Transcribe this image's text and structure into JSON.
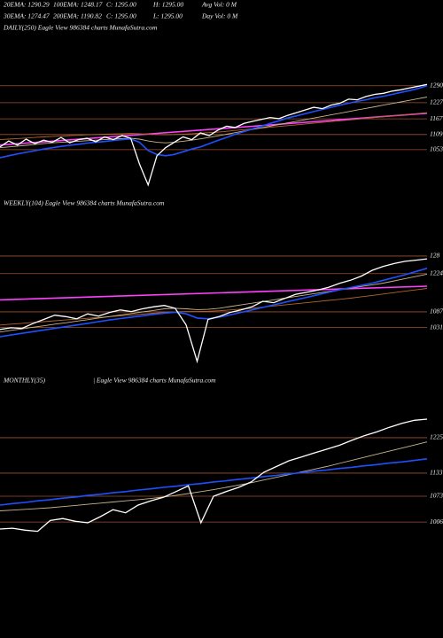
{
  "header": {
    "rows": [
      [
        "20EMA: 1290.29",
        "100EMA: 1248.17",
        "C: 1295.00",
        "H: 1295.00",
        "Avg Vol: 0  M"
      ],
      [
        "30EMA: 1274.47",
        "200EMA: 1190.82",
        "C: 1295.00",
        "L: 1295.00",
        "Day Vol: 0  M"
      ]
    ]
  },
  "chart_data": [
    {
      "type": "line",
      "title": "DAILY(250) Eagle  View  986384  charts MunafaSutra.com",
      "ylim": [
        898,
        1345
      ],
      "yticks": [
        1290,
        1227,
        1167,
        1109,
        1053
      ],
      "grid": true,
      "grid_color": "#a0522d",
      "trend": {
        "color": "#ff40ff",
        "values": [
          1070,
          1188
        ]
      },
      "series": [
        {
          "color": "#b4642a",
          "values": [
            1090,
            1092,
            1094,
            1096,
            1098,
            1100,
            1102,
            1103,
            1105,
            1106,
            1108,
            1109,
            1110,
            1111,
            1112,
            1113,
            1112,
            1110,
            1109,
            1108,
            1109,
            1110,
            1112,
            1114,
            1116,
            1118,
            1121,
            1124,
            1127,
            1130,
            1133,
            1136,
            1139,
            1142,
            1145,
            1148,
            1151,
            1154,
            1157,
            1160,
            1163,
            1166,
            1169,
            1172,
            1175,
            1178,
            1181,
            1184,
            1187,
            1190
          ]
        },
        {
          "color": "#c8b48c",
          "values": [
            1060,
            1063,
            1066,
            1069,
            1072,
            1075,
            1078,
            1080,
            1082,
            1084,
            1086,
            1088,
            1090,
            1092,
            1094,
            1095,
            1092,
            1085,
            1080,
            1078,
            1080,
            1084,
            1088,
            1093,
            1098,
            1104,
            1110,
            1116,
            1122,
            1128,
            1134,
            1140,
            1146,
            1152,
            1158,
            1164,
            1170,
            1176,
            1182,
            1188,
            1194,
            1200,
            1206,
            1212,
            1218,
            1224,
            1230,
            1236,
            1242,
            1248
          ]
        },
        {
          "color": "#1e50ff",
          "values": [
            1023,
            1030,
            1037,
            1043,
            1049,
            1055,
            1060,
            1065,
            1069,
            1073,
            1077,
            1080,
            1083,
            1087,
            1090,
            1093,
            1080,
            1050,
            1035,
            1030,
            1035,
            1045,
            1055,
            1063,
            1075,
            1087,
            1098,
            1110,
            1120,
            1130,
            1140,
            1150,
            1160,
            1170,
            1178,
            1186,
            1194,
            1202,
            1210,
            1218,
            1225,
            1232,
            1238,
            1245,
            1251,
            1258,
            1265,
            1272,
            1280,
            1290
          ]
        },
        {
          "color": "#ffffff",
          "values": [
            1063,
            1085,
            1070,
            1092,
            1075,
            1088,
            1080,
            1098,
            1078,
            1090,
            1095,
            1082,
            1100,
            1090,
            1105,
            1095,
            1000,
            922,
            1030,
            1060,
            1080,
            1100,
            1090,
            1115,
            1105,
            1125,
            1140,
            1135,
            1150,
            1158,
            1165,
            1172,
            1168,
            1180,
            1190,
            1200,
            1210,
            1205,
            1218,
            1225,
            1240,
            1238,
            1250,
            1258,
            1262,
            1270,
            1275,
            1282,
            1288,
            1295
          ]
        }
      ]
    },
    {
      "type": "line",
      "title": "WEEKLY(104) Eagle  View  986384  charts MunafaSutra.com",
      "ylim": [
        887,
        1347
      ],
      "yticks": [
        {
          "value": 1287,
          "label": "128"
        },
        1224,
        1087,
        1031
      ],
      "grid": true,
      "grid_color": "#a0522d",
      "trend": {
        "color": "#ff40ff",
        "values": [
          1130,
          1179
        ]
      },
      "series": [
        {
          "color": "#b4642a",
          "values": [
            1040,
            1043,
            1046,
            1049,
            1052,
            1055,
            1058,
            1061,
            1064,
            1067,
            1070,
            1073,
            1076,
            1079,
            1082,
            1085,
            1087,
            1088,
            1088,
            1089,
            1091,
            1094,
            1097,
            1100,
            1104,
            1108,
            1112,
            1116,
            1120,
            1124,
            1128,
            1132,
            1136,
            1141,
            1146,
            1151,
            1156,
            1161,
            1166,
            1171
          ]
        },
        {
          "color": "#c8b48c",
          "values": [
            1015,
            1021,
            1026,
            1032,
            1037,
            1043,
            1048,
            1054,
            1059,
            1065,
            1070,
            1076,
            1081,
            1087,
            1092,
            1098,
            1100,
            1098,
            1095,
            1096,
            1100,
            1106,
            1112,
            1118,
            1124,
            1130,
            1136,
            1142,
            1148,
            1154,
            1160,
            1166,
            1172,
            1178,
            1184,
            1190,
            1198,
            1206,
            1214,
            1222
          ]
        },
        {
          "color": "#1e50ff",
          "values": [
            998,
            1004,
            1010,
            1016,
            1022,
            1028,
            1034,
            1040,
            1046,
            1052,
            1058,
            1063,
            1068,
            1073,
            1078,
            1082,
            1086,
            1080,
            1065,
            1062,
            1068,
            1076,
            1085,
            1094,
            1103,
            1112,
            1121,
            1130,
            1139,
            1148,
            1157,
            1166,
            1174,
            1182,
            1190,
            1200,
            1210,
            1220,
            1232,
            1243
          ]
        },
        {
          "color": "#ffffff",
          "values": [
            1024,
            1030,
            1028,
            1045,
            1060,
            1075,
            1070,
            1062,
            1080,
            1072,
            1085,
            1094,
            1088,
            1098,
            1105,
            1110,
            1100,
            1040,
            910,
            1060,
            1070,
            1085,
            1094,
            1105,
            1125,
            1120,
            1135,
            1150,
            1157,
            1165,
            1175,
            1189,
            1200,
            1215,
            1236,
            1250,
            1260,
            1268,
            1272,
            1277
          ]
        }
      ]
    },
    {
      "type": "line",
      "title": "MONTHLY(35)",
      "subtitle": "| Eagle  View  986384  charts MunafaSutra.com",
      "ylim": [
        958,
        1303
      ],
      "yticks": [
        1225,
        1133,
        1073,
        1006
      ],
      "grid": true,
      "grid_color": "#a0522d",
      "series": [
        {
          "color": "#c8b48c",
          "values": [
            1035,
            1037,
            1039,
            1041,
            1043,
            1046,
            1049,
            1052,
            1055,
            1058,
            1061,
            1064,
            1067,
            1071,
            1075,
            1080,
            1085,
            1090,
            1096,
            1102,
            1108,
            1115,
            1122,
            1129,
            1136,
            1143,
            1150,
            1158,
            1166,
            1174,
            1182,
            1190,
            1198,
            1206,
            1214
          ]
        },
        {
          "color": "#1e50ff",
          "values": [
            1050,
            1054,
            1057,
            1061,
            1064,
            1068,
            1071,
            1075,
            1078,
            1082,
            1085,
            1089,
            1092,
            1096,
            1099,
            1103,
            1106,
            1110,
            1113,
            1117,
            1120,
            1124,
            1127,
            1131,
            1134,
            1138,
            1141,
            1145,
            1148,
            1152,
            1155,
            1159,
            1162,
            1166,
            1170
          ]
        },
        {
          "color": "#ffffff",
          "values": [
            988,
            990,
            985,
            982,
            1010,
            1015,
            1008,
            1004,
            1020,
            1038,
            1030,
            1050,
            1061,
            1070,
            1085,
            1100,
            1004,
            1073,
            1085,
            1096,
            1110,
            1135,
            1150,
            1165,
            1175,
            1185,
            1195,
            1205,
            1218,
            1230,
            1240,
            1252,
            1262,
            1270,
            1273
          ]
        }
      ]
    }
  ]
}
